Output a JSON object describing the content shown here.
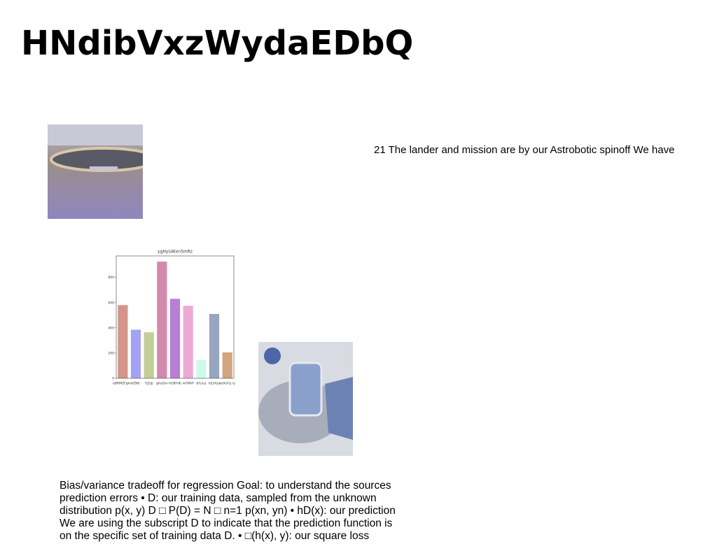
{
  "title": "HNdibVxzWydaEDbQ",
  "caption": "21 The lander and mission are by our Astrobotic spinoff We have",
  "body": {
    "lines": [
      "Bias/variance tradeoff for regression Goal: to understand the sources",
      "prediction errors • D: our training data, sampled from the unknown",
      "distribution p(x, y) D □ P(D) = N □ n=1 p(xn, yn) • hD(x): our prediction",
      "We are using the subscript D to indicate that the prediction function is",
      "on the specific set of training data D. • □(h(x), y): our square loss"
    ]
  },
  "chart_data": {
    "type": "bar",
    "title": "ygHyUAlxn5mRz",
    "categories": [
      "eBRMZFgkm",
      "rZNtl",
      "TjZsJj",
      "ghsQlvi",
      "hGBYdb",
      "wYWVf",
      "bYycq",
      "hZzXzu",
      "bdXsFq ry"
    ],
    "values": [
      580,
      385,
      365,
      925,
      630,
      575,
      145,
      510,
      205
    ],
    "colors": [
      "#d4948a",
      "#a3a3f5",
      "#c2cf96",
      "#d18aab",
      "#b87fd6",
      "#eeaad6",
      "#cff7ea",
      "#97a5bf",
      "#d2a57e"
    ],
    "ylim": [
      0,
      970
    ],
    "yticks": [
      0,
      200,
      400,
      600,
      800
    ]
  }
}
